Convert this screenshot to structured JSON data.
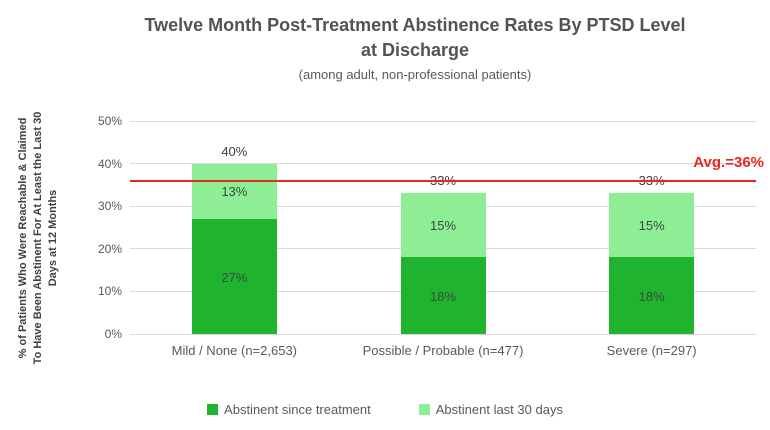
{
  "chart_data": {
    "type": "bar",
    "stacked": true,
    "title": "Twelve Month Post-Treatment Abstinence Rates By PTSD Level\nat Discharge",
    "subtitle": "(among adult, non-professional patients)",
    "ylabel": "% of Patients Who Were Reachable & Claimed\nTo Have Been Abstinent For At Least the Last 30\nDays at 12 Months",
    "categories": [
      "Mild / None (n=2,653)",
      "Possible / Probable (n=477)",
      "Severe (n=297)"
    ],
    "series": [
      {
        "name": "Abstinent since treatment",
        "values": [
          27,
          18,
          18
        ],
        "labels": [
          "27%",
          "18%",
          "18%"
        ],
        "color": "#1fb32e"
      },
      {
        "name": "Abstinent last 30 days",
        "values": [
          13,
          15,
          15
        ],
        "labels": [
          "13%",
          "15%",
          "15%"
        ],
        "color": "#8dee96"
      }
    ],
    "totals": [
      "40%",
      "33%",
      "33%"
    ],
    "yticks": [
      {
        "value": 0,
        "label": "0%"
      },
      {
        "value": 10,
        "label": "10%"
      },
      {
        "value": 20,
        "label": "20%"
      },
      {
        "value": 30,
        "label": "30%"
      },
      {
        "value": 40,
        "label": "40%"
      },
      {
        "value": 50,
        "label": "50%"
      }
    ],
    "ylim": [
      0,
      50
    ],
    "grid": true,
    "legend_position": "bottom",
    "avg_line": {
      "value": 36,
      "label": "Avg.=36%"
    }
  },
  "colors": {
    "avg_red": "#e8281c",
    "grid_gray": "#d9d9d9",
    "text_gray": "#595959",
    "label_dark": "#404040"
  }
}
